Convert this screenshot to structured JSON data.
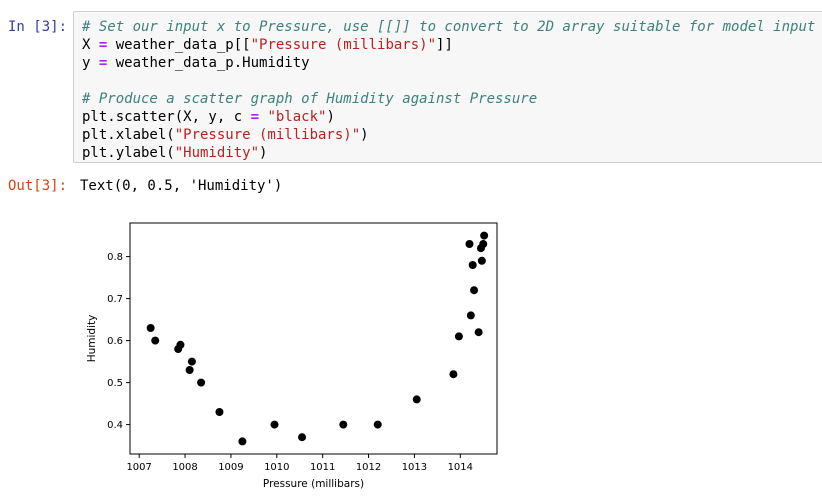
{
  "cell": {
    "in_prompt": "In [3]:",
    "out_prompt": "Out[3]:",
    "code_lines": [
      [
        {
          "t": "cm",
          "v": "# Set our input x to Pressure, use [[]] to convert to 2D array suitable for model input"
        }
      ],
      [
        {
          "t": "var",
          "v": "X "
        },
        {
          "t": "op",
          "v": "="
        },
        {
          "t": "var",
          "v": " weather_data_p[["
        },
        {
          "t": "str",
          "v": "\"Pressure (millibars)\""
        },
        {
          "t": "var",
          "v": "]]"
        }
      ],
      [
        {
          "t": "var",
          "v": "y "
        },
        {
          "t": "op",
          "v": "="
        },
        {
          "t": "var",
          "v": " weather_data_p.Humidity"
        }
      ],
      [
        {
          "t": "var",
          "v": ""
        }
      ],
      [
        {
          "t": "cm",
          "v": "# Produce a scatter graph of Humidity against Pressure"
        }
      ],
      [
        {
          "t": "var",
          "v": "plt.scatter(X, y, c "
        },
        {
          "t": "op",
          "v": "="
        },
        {
          "t": "var",
          "v": " "
        },
        {
          "t": "str",
          "v": "\"black\""
        },
        {
          "t": "var",
          "v": ")"
        }
      ],
      [
        {
          "t": "var",
          "v": "plt.xlabel("
        },
        {
          "t": "str",
          "v": "\"Pressure (millibars)\""
        },
        {
          "t": "var",
          "v": ")"
        }
      ],
      [
        {
          "t": "var",
          "v": "plt.ylabel("
        },
        {
          "t": "str",
          "v": "\"Humidity\""
        },
        {
          "t": "var",
          "v": ")"
        }
      ]
    ],
    "output_text": "Text(0, 0.5, 'Humidity')"
  },
  "colors": {
    "in_prompt": "#303f9f",
    "out_prompt": "#d84315",
    "marker": "#000000"
  },
  "chart_data": {
    "type": "scatter",
    "title": "",
    "xlabel": "Pressure (millibars)",
    "ylabel": "Humidity",
    "xlim": [
      1006.8,
      1014.8
    ],
    "ylim": [
      0.33,
      0.88
    ],
    "xticks": [
      1007,
      1008,
      1009,
      1010,
      1011,
      1012,
      1013,
      1014
    ],
    "yticks": [
      0.4,
      0.5,
      0.6,
      0.7,
      0.8
    ],
    "grid": false,
    "points": [
      [
        1007.25,
        0.63
      ],
      [
        1007.35,
        0.6
      ],
      [
        1007.85,
        0.58
      ],
      [
        1007.9,
        0.59
      ],
      [
        1008.1,
        0.53
      ],
      [
        1008.15,
        0.55
      ],
      [
        1008.35,
        0.5
      ],
      [
        1008.75,
        0.43
      ],
      [
        1009.25,
        0.36
      ],
      [
        1009.95,
        0.4
      ],
      [
        1010.55,
        0.37
      ],
      [
        1011.45,
        0.4
      ],
      [
        1012.2,
        0.4
      ],
      [
        1013.05,
        0.46
      ],
      [
        1013.85,
        0.52
      ],
      [
        1013.97,
        0.61
      ],
      [
        1014.2,
        0.83
      ],
      [
        1014.23,
        0.66
      ],
      [
        1014.27,
        0.78
      ],
      [
        1014.3,
        0.72
      ],
      [
        1014.4,
        0.62
      ],
      [
        1014.45,
        0.82
      ],
      [
        1014.47,
        0.79
      ],
      [
        1014.5,
        0.83
      ],
      [
        1014.52,
        0.85
      ]
    ]
  }
}
